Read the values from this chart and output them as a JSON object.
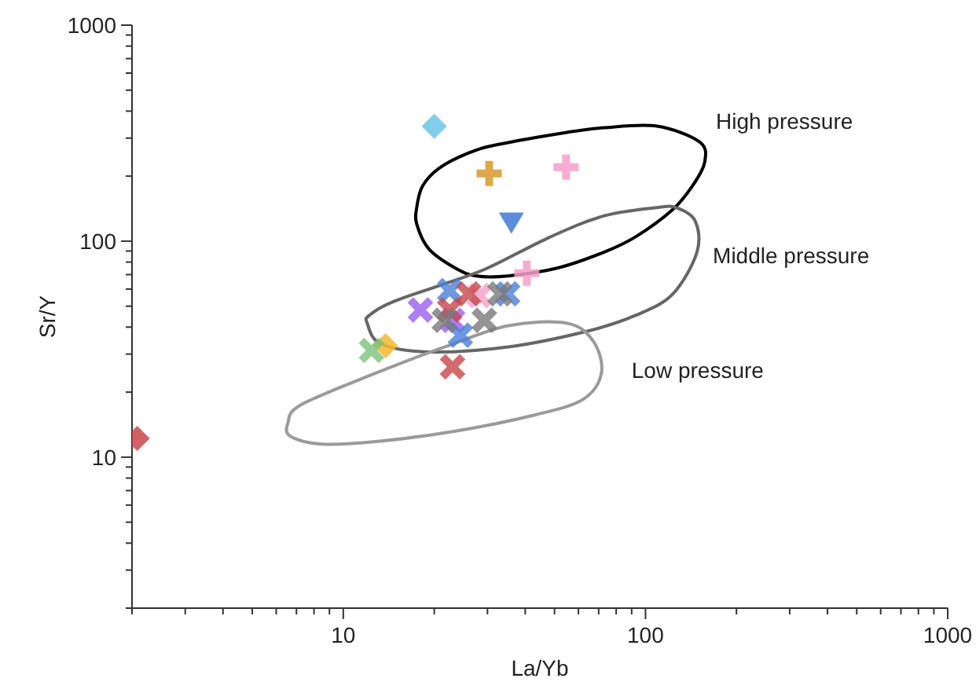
{
  "chart_data": {
    "type": "scatter",
    "xlabel": "La/Yb",
    "ylabel": "Sr/Y",
    "log": "xy",
    "annotations": [
      "High pressure",
      "Middle pressure",
      "Low pressure"
    ],
    "xlim": [
      2,
      1000
    ],
    "ylim": [
      2,
      1000
    ],
    "xticks": [
      {
        "value": 2,
        "label": null
      },
      {
        "value": 3,
        "label": null
      },
      {
        "value": 4,
        "label": null
      },
      {
        "value": 5,
        "label": null
      },
      {
        "value": 6,
        "label": null
      },
      {
        "value": 7,
        "label": null
      },
      {
        "value": 8,
        "label": null
      },
      {
        "value": 9,
        "label": null
      },
      10,
      {
        "value": 20,
        "label": null
      },
      {
        "value": 30,
        "label": null
      },
      {
        "value": 40,
        "label": null
      },
      {
        "value": 50,
        "label": null
      },
      {
        "value": 60,
        "label": null
      },
      {
        "value": 70,
        "label": null
      },
      {
        "value": 80,
        "label": null
      },
      {
        "value": 90,
        "label": null
      },
      100,
      {
        "value": 200,
        "label": null
      },
      {
        "value": 300,
        "label": null
      },
      {
        "value": 400,
        "label": null
      },
      {
        "value": 500,
        "label": null
      },
      {
        "value": 600,
        "label": null
      },
      {
        "value": 700,
        "label": null
      },
      {
        "value": 800,
        "label": null
      },
      {
        "value": 900,
        "label": null
      },
      1000
    ],
    "yticks": [
      {
        "value": 2,
        "label": null
      },
      {
        "value": 3,
        "label": null
      },
      {
        "value": 4,
        "label": null
      },
      {
        "value": 5,
        "label": null
      },
      {
        "value": 6,
        "label": null
      },
      {
        "value": 7,
        "label": null
      },
      {
        "value": 8,
        "label": null
      },
      {
        "value": 9,
        "label": null
      },
      10,
      {
        "value": 20,
        "label": null
      },
      {
        "value": 30,
        "label": null
      },
      {
        "value": 40,
        "label": null
      },
      {
        "value": 50,
        "label": null
      },
      {
        "value": 60,
        "label": null
      },
      {
        "value": 70,
        "label": null
      },
      {
        "value": 80,
        "label": null
      },
      {
        "value": 90,
        "label": null
      },
      100,
      {
        "value": 200,
        "label": null
      },
      {
        "value": 300,
        "label": null
      },
      {
        "value": 400,
        "label": null
      },
      {
        "value": 500,
        "label": null
      },
      {
        "value": 600,
        "label": null
      },
      {
        "value": 700,
        "label": null
      },
      {
        "value": 800,
        "label": null
      },
      {
        "value": 900,
        "label": null
      },
      1000
    ],
    "series": [
      {
        "color": "#c8474b",
        "marker": "diamond",
        "x": [
          2.08
        ],
        "values": [
          12.2
        ]
      },
      {
        "color": "#6bc4e8",
        "marker": "diamond",
        "x": [
          20
        ],
        "values": [
          340
        ]
      },
      {
        "color": "#f5b82e",
        "marker": "diamond",
        "x": [
          13.8
        ],
        "values": [
          32.8
        ]
      },
      {
        "color": "#d99a2b",
        "marker": "plus",
        "x": [
          30.4
        ],
        "values": [
          206
        ]
      },
      {
        "color": "#f79ecb",
        "marker": "plus",
        "x": [
          54.6,
          40.5
        ],
        "values": [
          220,
          71
        ]
      },
      {
        "color": "#4a7fd8",
        "marker": "triangle",
        "x": [
          36
        ],
        "values": [
          122
        ]
      },
      {
        "color": "#7cc47c",
        "marker": "cross",
        "x": [
          12.4
        ],
        "values": [
          31.2
        ]
      },
      {
        "color": "#9b5ff0",
        "marker": "cross",
        "x": [
          18,
          23
        ],
        "values": [
          48,
          43
        ]
      },
      {
        "color": "#f79ecb",
        "marker": "cross",
        "x": [
          28.2
        ],
        "values": [
          56
        ]
      },
      {
        "color": "#4a7fd8",
        "marker": "cross",
        "x": [
          22.5,
          35,
          24.4
        ],
        "values": [
          59,
          57,
          36.7
        ]
      },
      {
        "color": "#c8474b",
        "marker": "cross",
        "x": [
          26,
          22.5,
          23
        ],
        "values": [
          57,
          48,
          26.2
        ]
      },
      {
        "color": "#7a7a7a",
        "marker": "cross",
        "x": [
          21.6,
          33,
          29.3
        ],
        "values": [
          43,
          57,
          43
        ]
      }
    ]
  }
}
